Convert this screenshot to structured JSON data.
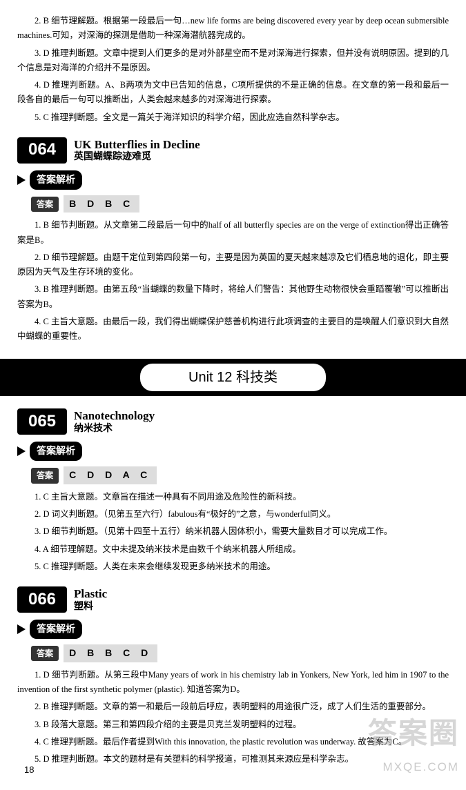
{
  "intro": {
    "p1": "2. B 细节理解题。根据第一段最后一句…new life forms are being discovered every year by deep ocean submersible machines.可知，对深海的探测是借助一种深海潜航器完成的。",
    "p2": "3. D 推理判断题。文章中提到人们更多的是对外部星空而不是对深海进行探索，但并没有说明原因。提到的几个信息是对海洋的介绍并不是原因。",
    "p3": "4. D 推理判断题。A、B两项为文中已告知的信息，C项所提供的不是正确的信息。在文章的第一段和最后一段各自的最后一句可以推断出，人类会越来越多的对深海进行探索。",
    "p4": "5. C 推理判断题。全文是一篇关于海洋知识的科学介绍，因此应选自然科学杂志。"
  },
  "s064": {
    "num": "064",
    "title_en": "UK Butterflies in Decline",
    "title_zh": "英国蝴蝶踪迹难觅",
    "answer_label": "答案解析",
    "key_label": "答案",
    "keys": "B D B C",
    "p1": "1. B 细节判断题。从文章第二段最后一句中的half of all butterfly species are on the verge of extinction得出正确答案是B。",
    "p2": "2. D 细节理解题。由题干定位到第四段第一句，主要是因为英国的夏天越来越凉及它们栖息地的退化，即主要原因为天气及生存环境的变化。",
    "p3": "3. B 推理判断题。由第五段“当蝴蝶的数量下降时，将给人们警告：其他野生动物很快会重蹈覆辙”可以推断出答案为B。",
    "p4": "4. C 主旨大意题。由最后一段，我们得出蝴蝶保护慈善机构进行此项调查的主要目的是唤醒人们意识到大自然中蝴蝶的重要性。"
  },
  "unit": {
    "label": "Unit 12 科技类"
  },
  "s065": {
    "num": "065",
    "title_en": "Nanotechnology",
    "title_zh": "纳米技术",
    "answer_label": "答案解析",
    "key_label": "答案",
    "keys": "C D D A C",
    "p1": "1. C 主旨大意题。文章旨在描述一种具有不同用途及危险性的新科技。",
    "p2": "2. D 词义判断题。（见第五至六行）fabulous有“极好的”之意，与wonderful同义。",
    "p3": "3. D 细节判断题。（见第十四至十五行）纳米机器人因体积小，需要大量数目才可以完成工作。",
    "p4": "4. A 细节理解题。文中未提及纳米技术是由数千个纳米机器人所组成。",
    "p5": "5. C 推理判断题。人类在未来会继续发现更多纳米技术的用途。"
  },
  "s066": {
    "num": "066",
    "title_en": "Plastic",
    "title_zh": "塑料",
    "answer_label": "答案解析",
    "key_label": "答案",
    "keys": "D B B C D",
    "p1": "1. D 细节判断题。从第三段中Many years of work in his chemistry lab in Yonkers, New York, led him in 1907 to the invention of the first synthetic polymer (plastic). 知道答案为D。",
    "p2": "2. B 推理判断题。文章的第一和最后一段前后呼应，表明塑料的用途很广泛，成了人们生活的重要部分。",
    "p3": "3. B 段落大意题。第三和第四段介绍的主要是贝克兰发明塑料的过程。",
    "p4": "4. C 推理判断题。最后作者提到With this innovation, the plastic revolution was underway. 故答案为C。",
    "p5": "5. D 推理判断题。本文的题材是有关塑料的科学报道，可推测其来源应是科学杂志。"
  },
  "page": "18",
  "watermark": {
    "line1": "答案圈",
    "line2": "MXQE.COM"
  }
}
